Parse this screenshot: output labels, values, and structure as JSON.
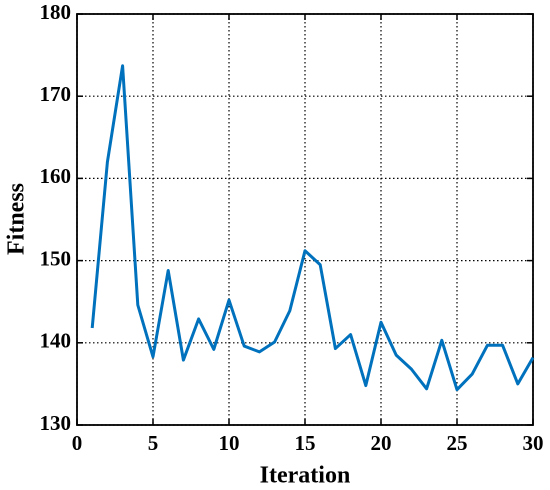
{
  "chart_data": {
    "type": "line",
    "xlabel": "Iteration",
    "ylabel": "Fitness",
    "x": [
      1,
      2,
      3,
      4,
      5,
      6,
      7,
      8,
      9,
      10,
      11,
      12,
      13,
      14,
      15,
      16,
      17,
      18,
      19,
      20,
      21,
      22,
      23,
      24,
      25,
      26,
      27,
      28,
      29,
      30
    ],
    "series": [
      {
        "color": "#0072bd",
        "values": [
          141.8,
          162,
          173.7,
          144.6,
          138.3,
          148.8,
          137.9,
          142.9,
          139.2,
          145.2,
          139.6,
          138.9,
          140.1,
          143.9,
          151.2,
          149.5,
          139.3,
          141,
          134.8,
          142.5,
          138.5,
          136.8,
          134.4,
          140.3,
          134.3,
          136.2,
          139.7,
          139.7,
          135,
          138.2
        ]
      }
    ],
    "xlim": [
      0,
      30
    ],
    "xticks": [
      0,
      5,
      10,
      15,
      20,
      25,
      30
    ],
    "ylim": [
      130,
      180
    ],
    "yticks": [
      130,
      140,
      150,
      160,
      170,
      180
    ],
    "grid": true
  }
}
